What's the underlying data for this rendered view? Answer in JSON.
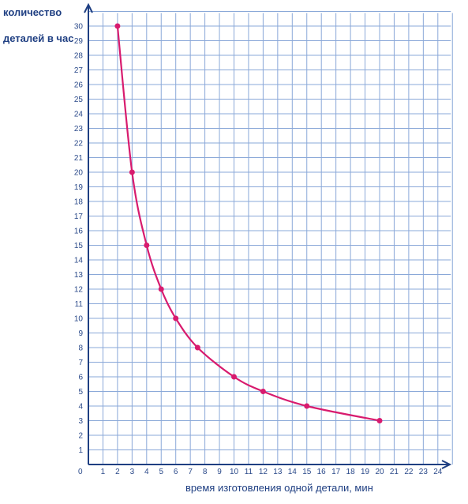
{
  "chart_data": {
    "type": "line",
    "title": "",
    "ylabel_line1": "количество",
    "ylabel_line2": "деталей в час",
    "xlabel": "время изготовления одной детали, мин",
    "origin_label": "0",
    "xlim": [
      0,
      25
    ],
    "ylim": [
      0,
      31
    ],
    "grid": true,
    "x_ticks": [
      "1",
      "2",
      "3",
      "4",
      "5",
      "6",
      "7",
      "8",
      "9",
      "10",
      "11",
      "12",
      "13",
      "14",
      "15",
      "16",
      "17",
      "18",
      "19",
      "20",
      "21",
      "22",
      "23",
      "24"
    ],
    "y_ticks": [
      "1",
      "2",
      "3",
      "4",
      "5",
      "6",
      "7",
      "8",
      "9",
      "10",
      "11",
      "12",
      "13",
      "14",
      "15",
      "16",
      "17",
      "18",
      "19",
      "20",
      "21",
      "22",
      "23",
      "24",
      "25",
      "26",
      "27",
      "28",
      "29",
      "30"
    ],
    "y_tick_values": [
      1,
      2,
      3,
      4,
      5,
      6,
      7,
      8,
      9,
      10,
      11,
      12,
      13,
      14,
      15,
      16,
      17,
      18,
      19,
      20,
      21,
      22,
      23,
      24,
      25,
      26,
      27,
      28,
      29,
      30
    ],
    "series": [
      {
        "x": [
          2,
          3,
          4,
          5,
          6,
          7.5,
          10,
          12,
          15,
          20
        ],
        "y": [
          30,
          20,
          15,
          12,
          10,
          8,
          6,
          5,
          4,
          3
        ]
      }
    ],
    "colors": {
      "line": "#d81b6e",
      "grid": "#8aa8d8",
      "axis": "#1f3f82",
      "tick_text": "#2b4a8a"
    }
  }
}
